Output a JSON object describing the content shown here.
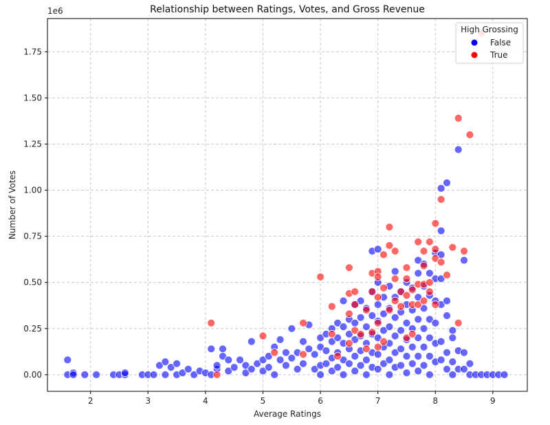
{
  "chart_data": {
    "type": "scatter",
    "title": "Relationship between Ratings, Votes, and Gross Revenue",
    "xlabel": "Average Ratings",
    "ylabel": "Number of Votes",
    "y_offset_label": "1e6",
    "xlim": [
      1.25,
      9.6
    ],
    "ylim": [
      -0.09,
      1.93
    ],
    "x_ticks": [
      2,
      3,
      4,
      5,
      6,
      7,
      8,
      9
    ],
    "x_tick_labels": [
      "2",
      "3",
      "4",
      "5",
      "6",
      "7",
      "8",
      "9"
    ],
    "y_ticks": [
      0,
      0.25,
      0.5,
      0.75,
      1.0,
      1.25,
      1.5,
      1.75
    ],
    "y_tick_labels": [
      "0.00",
      "0.25",
      "0.50",
      "0.75",
      "1.00",
      "1.25",
      "1.50",
      "1.75"
    ],
    "grid": true,
    "legend": {
      "title": "High Grossing",
      "placement": "top-right"
    },
    "series": [
      {
        "name": "False",
        "color": "#0000ff",
        "points": [
          [
            1.6,
            0.08
          ],
          [
            1.6,
            0.0
          ],
          [
            1.7,
            0.01
          ],
          [
            1.7,
            0.0
          ],
          [
            1.9,
            0.0
          ],
          [
            2.1,
            0.0
          ],
          [
            2.4,
            0.0
          ],
          [
            2.5,
            0.0
          ],
          [
            2.6,
            0.0
          ],
          [
            2.6,
            0.01
          ],
          [
            2.9,
            0.0
          ],
          [
            3.0,
            0.0
          ],
          [
            3.1,
            0.0
          ],
          [
            3.2,
            0.05
          ],
          [
            3.3,
            0.07
          ],
          [
            3.3,
            0.0
          ],
          [
            3.4,
            0.04
          ],
          [
            3.5,
            0.06
          ],
          [
            3.5,
            0.0
          ],
          [
            3.6,
            0.01
          ],
          [
            3.7,
            0.03
          ],
          [
            3.8,
            0.0
          ],
          [
            3.9,
            0.02
          ],
          [
            4.0,
            0.01
          ],
          [
            4.1,
            0.0
          ],
          [
            4.1,
            0.14
          ],
          [
            4.2,
            0.03
          ],
          [
            4.2,
            0.05
          ],
          [
            4.3,
            0.1
          ],
          [
            4.3,
            0.14
          ],
          [
            4.4,
            0.08
          ],
          [
            4.4,
            0.02
          ],
          [
            4.5,
            0.04
          ],
          [
            4.6,
            0.08
          ],
          [
            4.7,
            0.05
          ],
          [
            4.7,
            0.01
          ],
          [
            4.8,
            0.18
          ],
          [
            4.8,
            0.03
          ],
          [
            4.9,
            0.06
          ],
          [
            5.0,
            0.02
          ],
          [
            5.0,
            0.08
          ],
          [
            5.1,
            0.1
          ],
          [
            5.1,
            0.04
          ],
          [
            5.2,
            0.15
          ],
          [
            5.2,
            0.0
          ],
          [
            5.3,
            0.19
          ],
          [
            5.3,
            0.08
          ],
          [
            5.4,
            0.12
          ],
          [
            5.4,
            0.05
          ],
          [
            5.5,
            0.25
          ],
          [
            5.5,
            0.09
          ],
          [
            5.6,
            0.12
          ],
          [
            5.6,
            0.03
          ],
          [
            5.7,
            0.18
          ],
          [
            5.7,
            0.06
          ],
          [
            5.8,
            0.27
          ],
          [
            5.8,
            0.14
          ],
          [
            5.9,
            0.11
          ],
          [
            5.9,
            0.03
          ],
          [
            6.0,
            0.2
          ],
          [
            6.0,
            0.15
          ],
          [
            6.0,
            0.05
          ],
          [
            6.0,
            0.0
          ],
          [
            6.1,
            0.22
          ],
          [
            6.1,
            0.13
          ],
          [
            6.1,
            0.06
          ],
          [
            6.2,
            0.25
          ],
          [
            6.2,
            0.18
          ],
          [
            6.2,
            0.09
          ],
          [
            6.2,
            0.02
          ],
          [
            6.3,
            0.28
          ],
          [
            6.3,
            0.2
          ],
          [
            6.3,
            0.12
          ],
          [
            6.3,
            0.04
          ],
          [
            6.4,
            0.4
          ],
          [
            6.4,
            0.26
          ],
          [
            6.4,
            0.17
          ],
          [
            6.4,
            0.08
          ],
          [
            6.4,
            0.0
          ],
          [
            6.5,
            0.3
          ],
          [
            6.5,
            0.22
          ],
          [
            6.5,
            0.14
          ],
          [
            6.5,
            0.06
          ],
          [
            6.6,
            0.38
          ],
          [
            6.6,
            0.28
          ],
          [
            6.6,
            0.19
          ],
          [
            6.6,
            0.1
          ],
          [
            6.6,
            0.02
          ],
          [
            6.7,
            0.4
          ],
          [
            6.7,
            0.31
          ],
          [
            6.7,
            0.21
          ],
          [
            6.7,
            0.13
          ],
          [
            6.7,
            0.05
          ],
          [
            6.8,
            0.36
          ],
          [
            6.8,
            0.26
          ],
          [
            6.8,
            0.17
          ],
          [
            6.8,
            0.08
          ],
          [
            6.8,
            0.0
          ],
          [
            6.9,
            0.67
          ],
          [
            6.9,
            0.45
          ],
          [
            6.9,
            0.32
          ],
          [
            6.9,
            0.22
          ],
          [
            6.9,
            0.12
          ],
          [
            6.9,
            0.04
          ],
          [
            7.0,
            0.68
          ],
          [
            7.0,
            0.5
          ],
          [
            7.0,
            0.38
          ],
          [
            7.0,
            0.29
          ],
          [
            7.0,
            0.2
          ],
          [
            7.0,
            0.11
          ],
          [
            7.0,
            0.03
          ],
          [
            7.1,
            0.42
          ],
          [
            7.1,
            0.33
          ],
          [
            7.1,
            0.24
          ],
          [
            7.1,
            0.15
          ],
          [
            7.1,
            0.06
          ],
          [
            7.2,
            0.48
          ],
          [
            7.2,
            0.36
          ],
          [
            7.2,
            0.26
          ],
          [
            7.2,
            0.17
          ],
          [
            7.2,
            0.08
          ],
          [
            7.2,
            0.0
          ],
          [
            7.3,
            0.56
          ],
          [
            7.3,
            0.42
          ],
          [
            7.3,
            0.31
          ],
          [
            7.3,
            0.21
          ],
          [
            7.3,
            0.12
          ],
          [
            7.3,
            0.04
          ],
          [
            7.4,
            0.45
          ],
          [
            7.4,
            0.34
          ],
          [
            7.4,
            0.24
          ],
          [
            7.4,
            0.14
          ],
          [
            7.4,
            0.05
          ],
          [
            7.5,
            0.5
          ],
          [
            7.5,
            0.38
          ],
          [
            7.5,
            0.28
          ],
          [
            7.5,
            0.19
          ],
          [
            7.5,
            0.1
          ],
          [
            7.5,
            0.01
          ],
          [
            7.6,
            0.47
          ],
          [
            7.6,
            0.35
          ],
          [
            7.6,
            0.25
          ],
          [
            7.6,
            0.15
          ],
          [
            7.6,
            0.06
          ],
          [
            7.7,
            0.62
          ],
          [
            7.7,
            0.55
          ],
          [
            7.7,
            0.42
          ],
          [
            7.7,
            0.3
          ],
          [
            7.7,
            0.2
          ],
          [
            7.7,
            0.1
          ],
          [
            7.7,
            0.02
          ],
          [
            7.8,
            0.6
          ],
          [
            7.8,
            0.48
          ],
          [
            7.8,
            0.36
          ],
          [
            7.8,
            0.25
          ],
          [
            7.8,
            0.15
          ],
          [
            7.8,
            0.05
          ],
          [
            7.9,
            0.55
          ],
          [
            7.9,
            0.43
          ],
          [
            7.9,
            0.3
          ],
          [
            7.9,
            0.2
          ],
          [
            7.9,
            0.1
          ],
          [
            7.9,
            0.0
          ],
          [
            8.0,
            0.66
          ],
          [
            8.0,
            0.52
          ],
          [
            8.0,
            0.4
          ],
          [
            8.0,
            0.28
          ],
          [
            8.0,
            0.17
          ],
          [
            8.0,
            0.07
          ],
          [
            8.1,
            1.01
          ],
          [
            8.1,
            0.78
          ],
          [
            8.1,
            0.65
          ],
          [
            8.1,
            0.52
          ],
          [
            8.1,
            0.38
          ],
          [
            8.1,
            0.18
          ],
          [
            8.1,
            0.08
          ],
          [
            8.2,
            1.04
          ],
          [
            8.2,
            0.4
          ],
          [
            8.2,
            0.32
          ],
          [
            8.2,
            0.12
          ],
          [
            8.2,
            0.03
          ],
          [
            8.3,
            0.24
          ],
          [
            8.3,
            0.2
          ],
          [
            8.3,
            0.07
          ],
          [
            8.3,
            0.0
          ],
          [
            8.4,
            1.22
          ],
          [
            8.4,
            0.13
          ],
          [
            8.4,
            0.03
          ],
          [
            8.5,
            0.62
          ],
          [
            8.5,
            0.12
          ],
          [
            8.5,
            0.03
          ],
          [
            8.6,
            0.06
          ],
          [
            8.6,
            0.0
          ],
          [
            8.7,
            0.0
          ],
          [
            8.8,
            0.0
          ],
          [
            8.9,
            0.0
          ],
          [
            9.0,
            0.0
          ],
          [
            9.1,
            0.0
          ],
          [
            9.2,
            0.0
          ]
        ]
      },
      {
        "name": "True",
        "color": "#ff0000",
        "points": [
          [
            4.1,
            0.28
          ],
          [
            4.2,
            0.0
          ],
          [
            5.0,
            0.21
          ],
          [
            5.2,
            0.12
          ],
          [
            5.7,
            0.28
          ],
          [
            5.7,
            0.11
          ],
          [
            6.0,
            0.53
          ],
          [
            6.2,
            0.37
          ],
          [
            6.2,
            0.22
          ],
          [
            6.3,
            0.1
          ],
          [
            6.5,
            0.58
          ],
          [
            6.5,
            0.44
          ],
          [
            6.5,
            0.33
          ],
          [
            6.5,
            0.17
          ],
          [
            6.6,
            0.45
          ],
          [
            6.6,
            0.38
          ],
          [
            6.6,
            0.24
          ],
          [
            6.7,
            0.22
          ],
          [
            6.8,
            0.35
          ],
          [
            6.8,
            0.14
          ],
          [
            6.9,
            0.55
          ],
          [
            6.9,
            0.45
          ],
          [
            6.9,
            0.23
          ],
          [
            7.0,
            0.56
          ],
          [
            7.0,
            0.53
          ],
          [
            7.0,
            0.42
          ],
          [
            7.0,
            0.28
          ],
          [
            7.0,
            0.15
          ],
          [
            7.1,
            0.65
          ],
          [
            7.1,
            0.47
          ],
          [
            7.1,
            0.18
          ],
          [
            7.2,
            0.8
          ],
          [
            7.2,
            0.7
          ],
          [
            7.2,
            0.35
          ],
          [
            7.3,
            0.67
          ],
          [
            7.3,
            0.52
          ],
          [
            7.3,
            0.4
          ],
          [
            7.4,
            0.45
          ],
          [
            7.4,
            0.37
          ],
          [
            7.5,
            0.58
          ],
          [
            7.5,
            0.52
          ],
          [
            7.5,
            0.43
          ],
          [
            7.5,
            0.2
          ],
          [
            7.6,
            0.46
          ],
          [
            7.6,
            0.38
          ],
          [
            7.6,
            0.22
          ],
          [
            7.7,
            0.72
          ],
          [
            7.7,
            0.49
          ],
          [
            7.7,
            0.38
          ],
          [
            7.8,
            0.67
          ],
          [
            7.8,
            0.59
          ],
          [
            7.8,
            0.49
          ],
          [
            7.8,
            0.4
          ],
          [
            7.9,
            0.72
          ],
          [
            7.9,
            0.5
          ],
          [
            7.9,
            0.45
          ],
          [
            8.0,
            0.82
          ],
          [
            8.0,
            0.68
          ],
          [
            8.0,
            0.63
          ],
          [
            8.0,
            0.38
          ],
          [
            8.1,
            0.95
          ],
          [
            8.1,
            0.61
          ],
          [
            8.2,
            0.54
          ],
          [
            8.3,
            0.69
          ],
          [
            8.4,
            1.39
          ],
          [
            8.4,
            0.28
          ],
          [
            8.5,
            0.67
          ],
          [
            8.6,
            1.3
          ],
          [
            8.8,
            1.85
          ]
        ]
      }
    ]
  }
}
